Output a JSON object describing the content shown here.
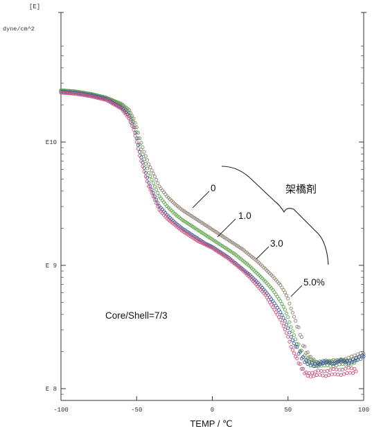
{
  "chart_data": {
    "type": "scatter",
    "title": "",
    "ylabel_top": "[E]",
    "ylabel_unit": "dyne/cm^2",
    "xlabel": "TEMP / ℃",
    "xlim": [
      -100,
      100
    ],
    "x_ticks": [
      "-100",
      "-50",
      "0",
      "50",
      "100"
    ],
    "ylim_log10": [
      7.9,
      10.8
    ],
    "y_ticks": [
      {
        "label": "E10",
        "log10": 10
      },
      {
        "label": "E 9",
        "log10": 9
      },
      {
        "label": "E 8",
        "log10": 8
      }
    ],
    "y_scale": "log",
    "grid": false,
    "annotation_text": "Core/Shell=7/3",
    "bracket_label": "架橋剤",
    "series": [
      {
        "name": "0",
        "color": "#8c8072",
        "x": [
          -100,
          -90,
          -80,
          -70,
          -60,
          -55,
          -52,
          -50,
          -48,
          -45,
          -42,
          -38,
          -35,
          -30,
          -25,
          -20,
          -15,
          -10,
          -5,
          0,
          5,
          10,
          15,
          20,
          25,
          30,
          35,
          40,
          45,
          48,
          50,
          52,
          55,
          58,
          60,
          62,
          65,
          68,
          70,
          75,
          80,
          85,
          90,
          95,
          100
        ],
        "y": [
          10.42,
          10.41,
          10.39,
          10.36,
          10.31,
          10.26,
          10.19,
          10.12,
          10.03,
          9.92,
          9.82,
          9.72,
          9.64,
          9.56,
          9.5,
          9.45,
          9.41,
          9.37,
          9.33,
          9.29,
          9.25,
          9.21,
          9.17,
          9.13,
          9.08,
          9.03,
          8.97,
          8.91,
          8.84,
          8.78,
          8.73,
          8.65,
          8.55,
          8.45,
          8.36,
          8.3,
          8.25,
          8.22,
          8.2,
          8.21,
          8.23,
          8.22,
          8.24,
          8.26,
          8.28
        ]
      },
      {
        "name": "1.0",
        "color": "#5aa045",
        "x": [
          -100,
          -90,
          -80,
          -70,
          -60,
          -55,
          -52,
          -50,
          -48,
          -45,
          -42,
          -38,
          -35,
          -30,
          -25,
          -20,
          -15,
          -10,
          -5,
          0,
          5,
          10,
          15,
          20,
          25,
          30,
          35,
          40,
          45,
          48,
          50,
          52,
          55,
          58,
          60,
          62,
          65,
          68,
          70,
          75,
          80,
          85,
          90,
          95
        ],
        "y": [
          10.42,
          10.41,
          10.39,
          10.36,
          10.3,
          10.24,
          10.16,
          10.08,
          9.98,
          9.86,
          9.75,
          9.64,
          9.56,
          9.48,
          9.42,
          9.37,
          9.33,
          9.29,
          9.25,
          9.21,
          9.17,
          9.13,
          9.09,
          9.04,
          8.99,
          8.93,
          8.87,
          8.8,
          8.71,
          8.64,
          8.58,
          8.5,
          8.4,
          8.32,
          8.27,
          8.24,
          8.22,
          8.2,
          8.2,
          8.21,
          8.2,
          8.22,
          8.21,
          8.23
        ]
      },
      {
        "name": "3.0",
        "color": "#3d5a9c",
        "x": [
          -100,
          -90,
          -80,
          -70,
          -60,
          -55,
          -52,
          -50,
          -48,
          -45,
          -42,
          -38,
          -35,
          -30,
          -25,
          -20,
          -15,
          -10,
          -5,
          0,
          5,
          10,
          15,
          20,
          25,
          30,
          35,
          40,
          45,
          48,
          50,
          52,
          55,
          58,
          60,
          62,
          65,
          68,
          70,
          75,
          80,
          85,
          90,
          95,
          100
        ],
        "y": [
          10.41,
          10.4,
          10.38,
          10.35,
          10.28,
          10.21,
          10.12,
          10.03,
          9.92,
          9.79,
          9.67,
          9.56,
          9.48,
          9.41,
          9.35,
          9.3,
          9.26,
          9.22,
          9.18,
          9.15,
          9.11,
          9.07,
          9.02,
          8.97,
          8.92,
          8.86,
          8.79,
          8.71,
          8.62,
          8.55,
          8.49,
          8.42,
          8.34,
          8.28,
          8.24,
          8.22,
          8.2,
          8.19,
          8.2,
          8.22,
          8.2,
          8.23,
          8.21,
          8.24,
          8.26
        ]
      },
      {
        "name": "5.0%",
        "color": "#c8507a",
        "x": [
          -100,
          -90,
          -80,
          -70,
          -60,
          -55,
          -52,
          -50,
          -48,
          -45,
          -42,
          -38,
          -35,
          -30,
          -25,
          -20,
          -15,
          -10,
          -5,
          0,
          5,
          10,
          15,
          20,
          25,
          30,
          35,
          40,
          45,
          48,
          50,
          52,
          55,
          58,
          60,
          62,
          65,
          68,
          70,
          75,
          80,
          85,
          90,
          95
        ],
        "y": [
          10.4,
          10.39,
          10.37,
          10.34,
          10.27,
          10.19,
          10.1,
          10.0,
          9.89,
          9.76,
          9.64,
          9.53,
          9.45,
          9.38,
          9.33,
          9.28,
          9.24,
          9.2,
          9.17,
          9.14,
          9.1,
          9.06,
          9.01,
          8.96,
          8.9,
          8.83,
          8.76,
          8.66,
          8.56,
          8.48,
          8.42,
          8.34,
          8.26,
          8.19,
          8.15,
          8.12,
          8.11,
          8.12,
          8.13,
          8.12,
          8.14,
          8.13,
          8.15,
          8.14
        ]
      }
    ]
  }
}
